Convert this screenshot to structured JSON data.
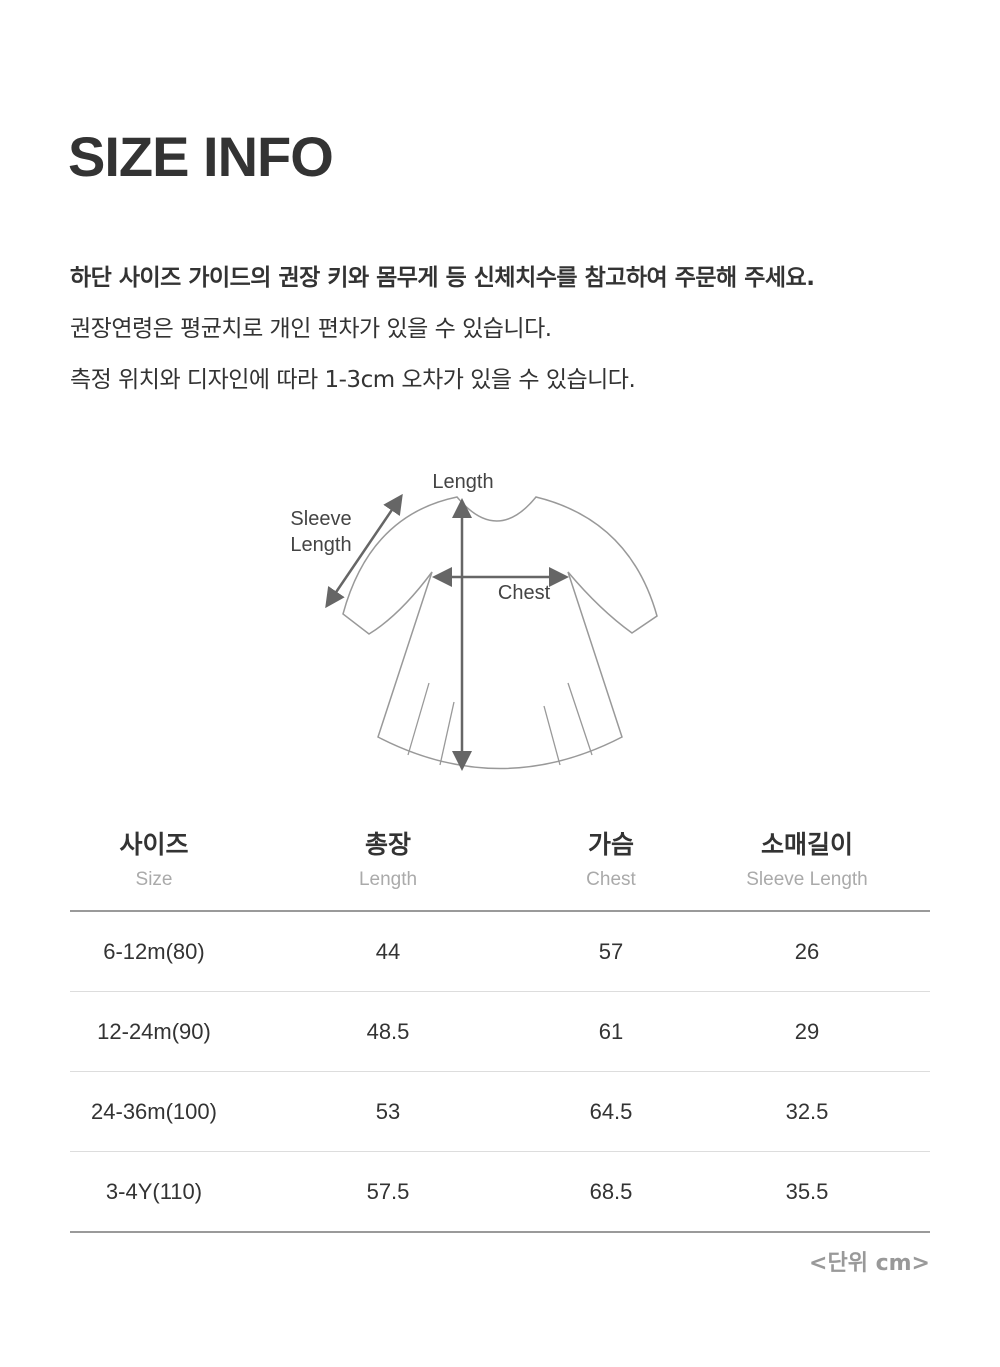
{
  "title": "SIZE INFO",
  "description": [
    "하단 사이즈 가이드의 권장 키와 몸무게 등 신체치수를 참고하여 주문해 주세요.",
    "권장연령은 평균치로 개인 편차가 있을 수 있습니다.",
    "측정 위치와 디자인에 따라 1-3cm 오차가 있을 수 있습니다."
  ],
  "diagram": {
    "length_label": "Length",
    "sleeve_label_1": "Sleeve",
    "sleeve_label_2": "Length",
    "chest_label": "Chest"
  },
  "table": {
    "headers": [
      {
        "ko": "사이즈",
        "en": "Size"
      },
      {
        "ko": "총장",
        "en": "Length"
      },
      {
        "ko": "가슴",
        "en": "Chest"
      },
      {
        "ko": "소매길이",
        "en": "Sleeve Length"
      }
    ],
    "rows": [
      [
        "6-12m(80)",
        "44",
        "57",
        "26"
      ],
      [
        "12-24m(90)",
        "48.5",
        "61",
        "29"
      ],
      [
        "24-36m(100)",
        "53",
        "64.5",
        "32.5"
      ],
      [
        "3-4Y(110)",
        "57.5",
        "68.5",
        "35.5"
      ]
    ]
  },
  "unit_note": "<단위 cm>"
}
